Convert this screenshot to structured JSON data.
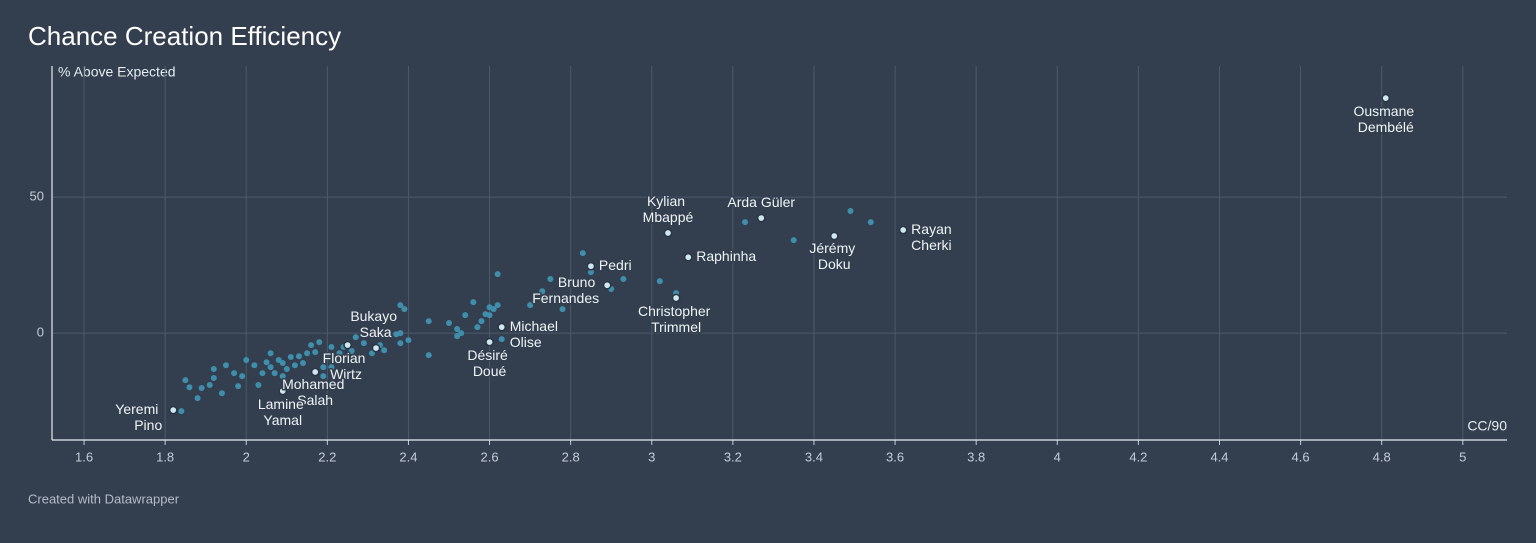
{
  "chart_data": {
    "type": "scatter",
    "title": "Chance Creation Efficiency",
    "y_label": "% Above Expected",
    "x_label": "CC/90",
    "source": "Created with Datawrapper",
    "xlim": [
      1.521,
      5.109
    ],
    "ylim": [
      -39.3,
      98.2
    ],
    "xticks": [
      1.6,
      1.8,
      2,
      2.2,
      2.4,
      2.6,
      2.8,
      3,
      3.2,
      3.4,
      3.6,
      3.8,
      4,
      4.2,
      4.4,
      4.6,
      4.8,
      5
    ],
    "yticks": [
      0,
      50
    ],
    "grid": true,
    "series": [
      {
        "color": "#3f8eab",
        "x": [
          3.49,
          3.54,
          3.23,
          3.35,
          3.02,
          2.93,
          2.83,
          2.85,
          2.75,
          2.73,
          2.62,
          2.9,
          3.06,
          2.78,
          2.7,
          2.61,
          2.62,
          2.56,
          2.6,
          2.58,
          2.57,
          2.53,
          2.52,
          2.54,
          2.5,
          2.45,
          2.45,
          2.52,
          2.63,
          2.6,
          2.59,
          2.38,
          2.39,
          2.38,
          2.38,
          2.4,
          2.37,
          2.34,
          2.33,
          2.31,
          2.29,
          2.27,
          2.26,
          2.24,
          2.23,
          2.21,
          2.2,
          2.19,
          2.18,
          2.17,
          2.16,
          2.15,
          2.14,
          2.13,
          2.12,
          2.11,
          2.1,
          2.09,
          2.09,
          2.08,
          2.07,
          2.06,
          2.06,
          2.05,
          2.04,
          2.02,
          2.0,
          1.99,
          1.98,
          1.95,
          1.97,
          1.94,
          1.92,
          1.92,
          1.91,
          1.89,
          1.88,
          1.86,
          1.85,
          1.84,
          2.03,
          2.19,
          2.21
        ],
        "y": [
          44.9,
          40.8,
          40.8,
          34.2,
          19.1,
          19.9,
          29.4,
          22.4,
          19.9,
          15.4,
          21.7,
          16.2,
          14.7,
          8.8,
          10.3,
          8.8,
          10.3,
          11.4,
          6.6,
          4.4,
          2.2,
          0,
          1.5,
          6.6,
          3.7,
          4.4,
          -8.1,
          -1.1,
          -2.2,
          9.5,
          7.0,
          10.3,
          8.8,
          0,
          -3.7,
          -2.6,
          -0.4,
          -6.3,
          -4.4,
          -7.4,
          -3.7,
          -1.5,
          -6.6,
          -5.1,
          -7.4,
          -5.1,
          -9.2,
          -12.5,
          -3.3,
          -7.0,
          -4.4,
          -7.4,
          -11.0,
          -8.5,
          -11.8,
          -8.8,
          -13.2,
          -15.8,
          -11.0,
          -9.9,
          -14.7,
          -7.4,
          -12.5,
          -10.7,
          -14.7,
          -11.8,
          -9.9,
          -15.8,
          -19.5,
          -11.8,
          -14.7,
          -22.1,
          -16.5,
          -13.2,
          -19.1,
          -20.2,
          -23.9,
          -19.9,
          -17.3,
          -28.7,
          -19.1,
          -15.8,
          -12.5
        ]
      },
      {
        "color": "#cde8ef",
        "labels": [
          "Ousmane Dembélé",
          "Rayan Cherki",
          "Jérémy Doku",
          "Arda Güler",
          "Kylian Mbappé",
          "Raphinha",
          "Pedri",
          "Bruno Fernandes",
          "Christopher Trimmel",
          "Michael Olise",
          "Désiré Doué",
          "Bukayo Saka",
          "Florian Wirtz",
          "Mohamed Salah",
          "Lamine Yamal",
          "Yeremi Pino"
        ],
        "x": [
          4.81,
          3.62,
          3.45,
          3.27,
          3.04,
          3.09,
          2.85,
          2.89,
          3.06,
          2.63,
          2.6,
          2.25,
          2.32,
          2.17,
          2.09,
          1.82
        ],
        "y": [
          86.4,
          37.9,
          35.7,
          42.3,
          36.8,
          27.9,
          24.6,
          17.6,
          12.9,
          2.2,
          -3.3,
          -4.4,
          -5.5,
          -14.3,
          -21.3,
          -28.3
        ]
      }
    ]
  }
}
